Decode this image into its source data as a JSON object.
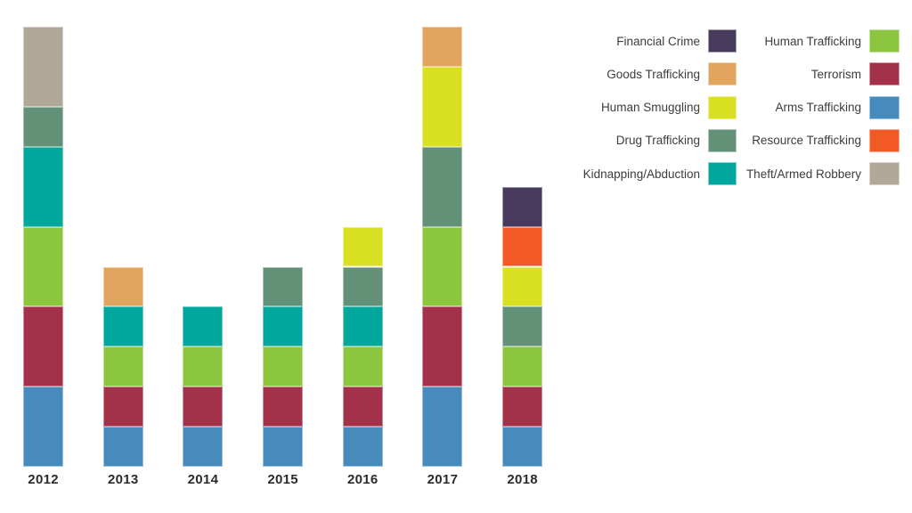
{
  "page": {
    "background": "#ffffff"
  },
  "chart_data": {
    "type": "bar",
    "stacked": true,
    "title": "",
    "xlabel": "",
    "ylabel": "",
    "grid": false,
    "y_axis_visible": false,
    "legend_position": "top-right",
    "categories": [
      "2012",
      "2013",
      "2014",
      "2015",
      "2016",
      "2017",
      "2018"
    ],
    "series": [
      {
        "name": "Arms Trafficking",
        "color": "#478bbd",
        "values": [
          2,
          1,
          1,
          1,
          1,
          2,
          1
        ]
      },
      {
        "name": "Terrorism",
        "color": "#a23149",
        "values": [
          2,
          1,
          1,
          1,
          1,
          2,
          1
        ]
      },
      {
        "name": "Human Trafficking",
        "color": "#8cc63f",
        "values": [
          2,
          1,
          1,
          1,
          1,
          2,
          1
        ]
      },
      {
        "name": "Kidnapping/Abduction",
        "color": "#00a79c",
        "values": [
          2,
          1,
          1,
          1,
          1,
          0,
          0
        ]
      },
      {
        "name": "Drug Trafficking",
        "color": "#639178",
        "values": [
          1,
          0,
          0,
          1,
          1,
          2,
          1
        ]
      },
      {
        "name": "Human Smuggling",
        "color": "#d8e021",
        "values": [
          0,
          0,
          0,
          0,
          1,
          2,
          1
        ]
      },
      {
        "name": "Goods Trafficking",
        "color": "#e2a55f",
        "values": [
          0,
          1,
          0,
          0,
          0,
          1,
          0
        ]
      },
      {
        "name": "Resource Trafficking",
        "color": "#f15a24",
        "values": [
          0,
          0,
          0,
          0,
          0,
          0,
          1
        ]
      },
      {
        "name": "Financial Crime",
        "color": "#473a5c",
        "values": [
          0,
          0,
          0,
          0,
          0,
          0,
          1
        ]
      },
      {
        "name": "Theft/Armed Robbery",
        "color": "#b1a897",
        "values": [
          2,
          0,
          0,
          0,
          0,
          0,
          0
        ]
      }
    ],
    "totals_per_category": [
      11,
      5,
      4,
      5,
      6,
      11,
      7
    ],
    "legend_columns": [
      [
        "Financial Crime",
        "Goods Trafficking",
        "Human Smuggling",
        "Drug Trafficking",
        "Kidnapping/Abduction"
      ],
      [
        "Human Trafficking",
        "Terrorism",
        "Arms Trafficking",
        "Resource Trafficking",
        "Theft/Armed Robbery"
      ]
    ]
  }
}
